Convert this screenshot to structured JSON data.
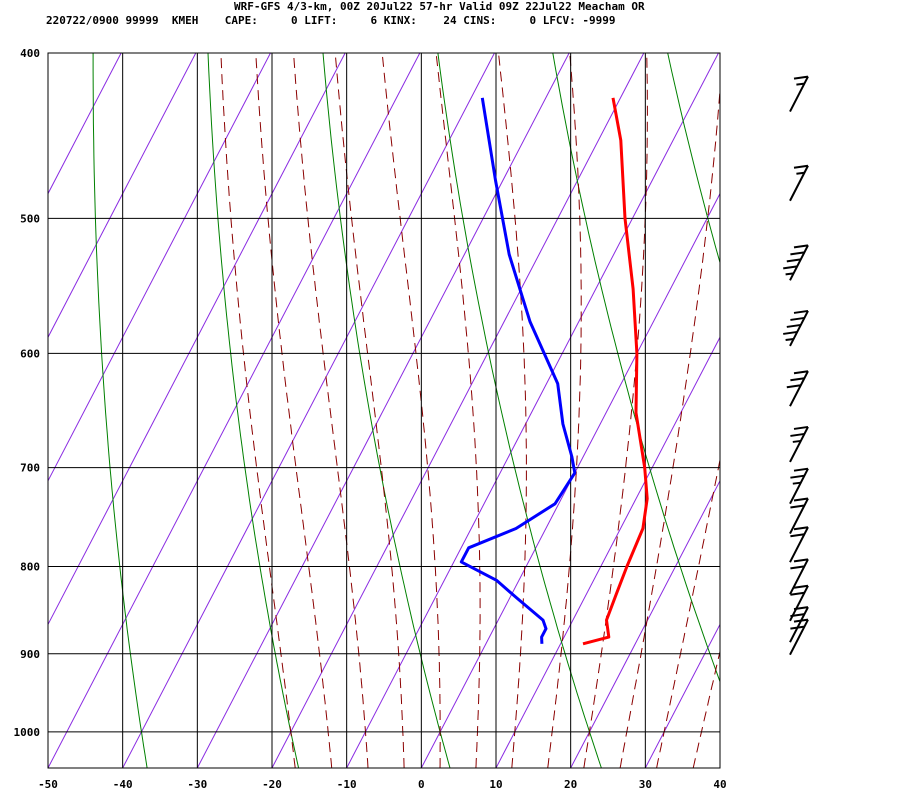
{
  "header": {
    "line1": "WRF-GFS 4/3-km, 00Z 20Jul22 57-hr Valid 09Z 22Jul22 Meacham OR",
    "line2": "220722/0900 99999  KMEH    CAPE:     0 LIFT:     6 KINX:    24 CINS:     0 LFCV: -9999"
  },
  "chart_data": {
    "type": "line",
    "title": "WRF-GFS 4/3-km, 00Z 20Jul22 57-hr Valid 09Z 22Jul22 Meacham OR",
    "xlim": [
      -50,
      40
    ],
    "pressure_range": [
      400,
      1050
    ],
    "x_ticks": [
      "-50",
      "-40",
      "-30",
      "-20",
      "-10",
      "0",
      "10",
      "20",
      "30",
      "40"
    ],
    "y_ticks": [
      "400",
      "500",
      "600",
      "700",
      "800",
      "900",
      "1000"
    ],
    "grid": true,
    "colors": {
      "temperature": "#ff0000",
      "dewpoint": "#0000ff",
      "isotherms": "#8a2be2",
      "dry_adiabats": "#008000",
      "moist_adiabats": "#8b0000",
      "grid": "#000000"
    },
    "series": [
      {
        "key": "temperature",
        "pressure": [
          425,
          450,
          500,
          550,
          600,
          650,
          700,
          730,
          760,
          800,
          830,
          860,
          880,
          888
        ],
        "values": [
          -21,
          -17,
          -11,
          -5,
          0,
          4,
          9,
          11.5,
          13,
          13.5,
          14,
          14.5,
          16,
          13
        ]
      },
      {
        "key": "dewpoint",
        "pressure": [
          425,
          475,
          525,
          575,
          625,
          660,
          690,
          705,
          735,
          760,
          780,
          795,
          815,
          835,
          860,
          870,
          880,
          888
        ],
        "values": [
          -38.5,
          -31,
          -24,
          -16.5,
          -8.5,
          -5,
          -1.5,
          0,
          -0.5,
          -4,
          -9,
          -9,
          -3,
          1,
          6,
          7,
          7,
          7.5
        ]
      }
    ],
    "wind_barbs": [
      {
        "pressure": 430,
        "speed_kt": 5
      },
      {
        "pressure": 485,
        "speed_kt": 5
      },
      {
        "pressure": 540,
        "speed_kt": 35
      },
      {
        "pressure": 590,
        "speed_kt": 35
      },
      {
        "pressure": 640,
        "speed_kt": 30
      },
      {
        "pressure": 690,
        "speed_kt": 15
      },
      {
        "pressure": 730,
        "speed_kt": 15
      },
      {
        "pressure": 760,
        "speed_kt": 20
      },
      {
        "pressure": 790,
        "speed_kt": 20
      },
      {
        "pressure": 825,
        "speed_kt": 20
      },
      {
        "pressure": 855,
        "speed_kt": 20
      },
      {
        "pressure": 880,
        "speed_kt": 20
      },
      {
        "pressure": 895,
        "speed_kt": 20
      }
    ]
  }
}
